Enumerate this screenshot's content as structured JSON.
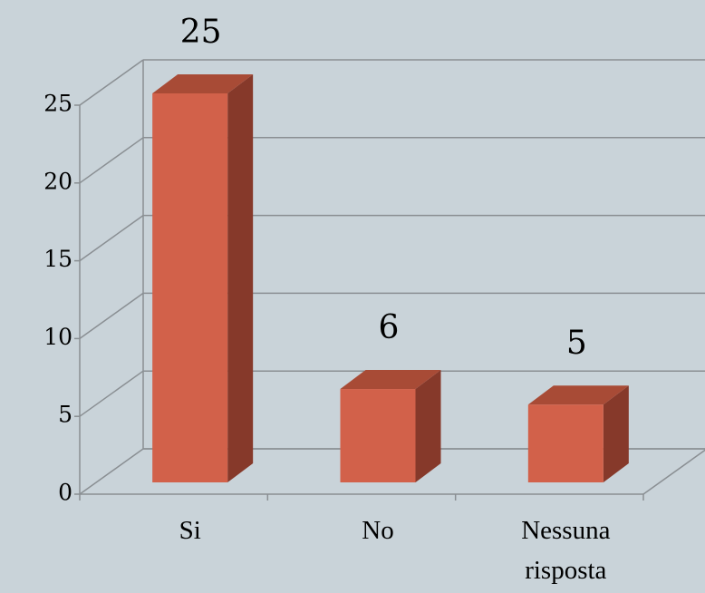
{
  "chart_data": {
    "type": "bar",
    "categories": [
      "Si",
      "No",
      "Nessuna risposta"
    ],
    "values": [
      25,
      6,
      5
    ],
    "color": "#d2614a",
    "ylim": [
      0,
      25
    ],
    "yticks": [
      0,
      5,
      10,
      15,
      20,
      25
    ],
    "grid": true
  }
}
